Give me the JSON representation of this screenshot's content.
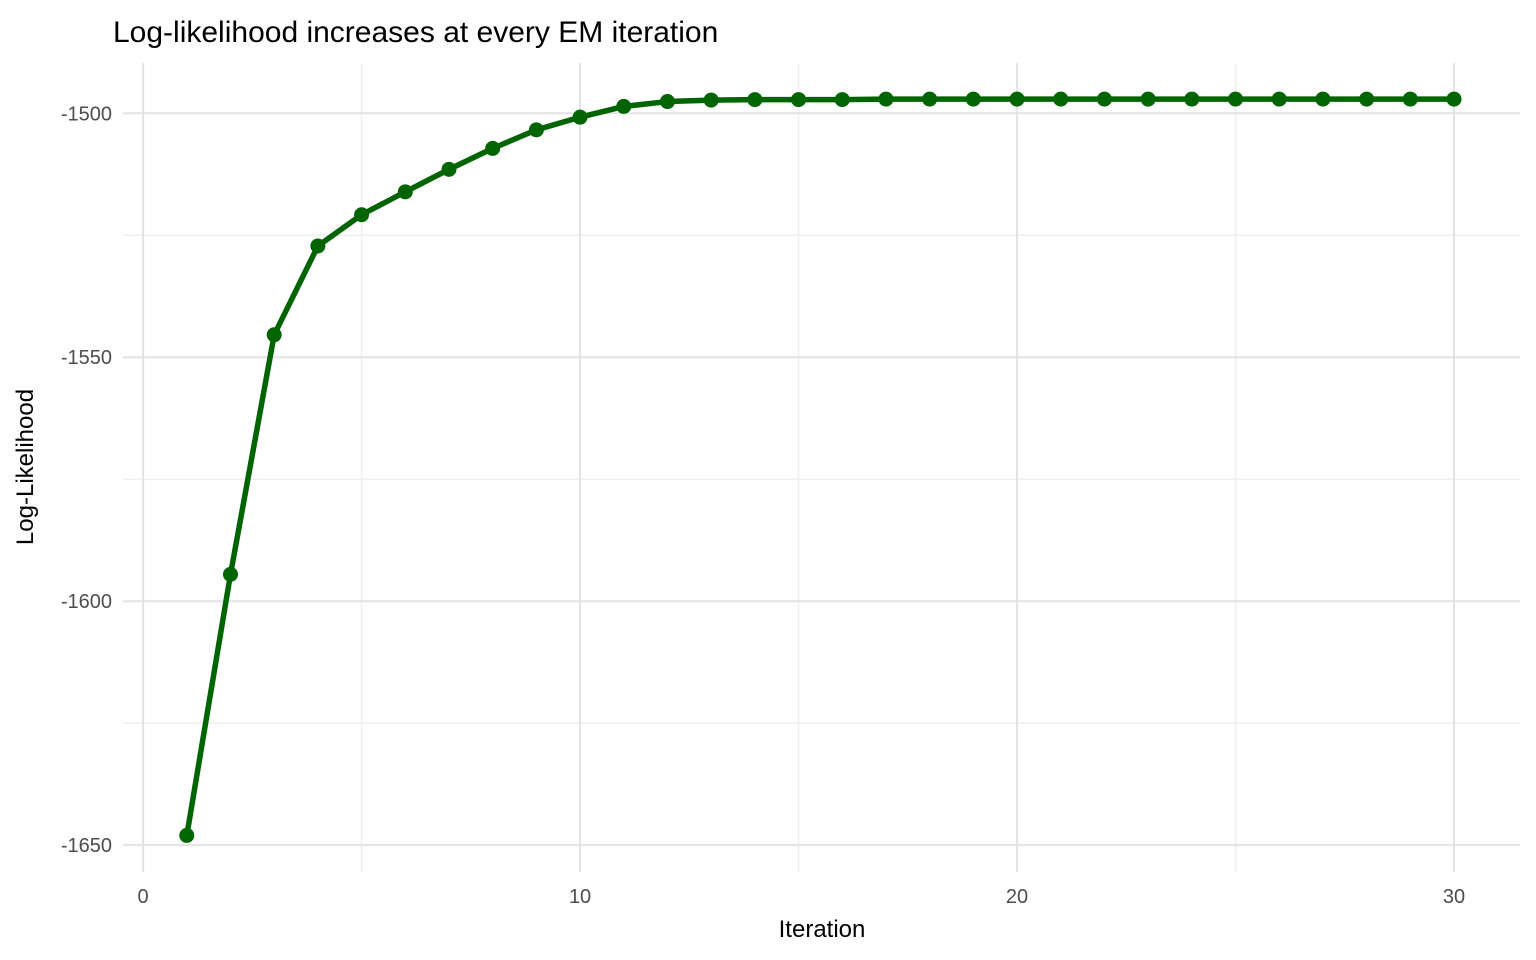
{
  "chart_data": {
    "type": "line",
    "title": "Log-likelihood increases at every EM iteration",
    "xlabel": "Iteration",
    "ylabel": "Log-Likelihood",
    "x": [
      1,
      2,
      3,
      4,
      5,
      6,
      7,
      8,
      9,
      10,
      11,
      12,
      13,
      14,
      15,
      16,
      17,
      18,
      19,
      20,
      21,
      22,
      23,
      24,
      25,
      26,
      27,
      28,
      29,
      30
    ],
    "series": [
      {
        "name": "log-likelihood",
        "values": [
          -1648.0,
          -1594.5,
          -1545.4,
          -1527.2,
          -1520.8,
          -1516.1,
          -1511.5,
          -1507.2,
          -1503.4,
          -1500.8,
          -1498.6,
          -1497.6,
          -1497.3,
          -1497.2,
          -1497.2,
          -1497.2,
          -1497.1,
          -1497.1,
          -1497.1,
          -1497.1,
          -1497.1,
          -1497.1,
          -1497.1,
          -1497.1,
          -1497.1,
          -1497.1,
          -1497.1,
          -1497.1,
          -1497.1,
          -1497.1
        ]
      }
    ],
    "x_ticks_major": [
      0,
      10,
      20,
      30
    ],
    "x_ticks_minor": [
      5,
      15,
      25
    ],
    "y_ticks_major": [
      -1500,
      -1550,
      -1600,
      -1650
    ],
    "y_ticks_minor": [
      -1525,
      -1575,
      -1625
    ],
    "x_range": [
      -0.46,
      31.51
    ],
    "y_range": [
      -1655.5,
      -1489.7
    ],
    "grid": "on",
    "legend": "none",
    "marker": "point",
    "colors": {
      "series": "#006400",
      "grid_major": "#e3e3e3",
      "grid_minor": "#efefef",
      "tick_label": "#4d4d4d",
      "text": "#000000",
      "background": "#ffffff"
    }
  }
}
